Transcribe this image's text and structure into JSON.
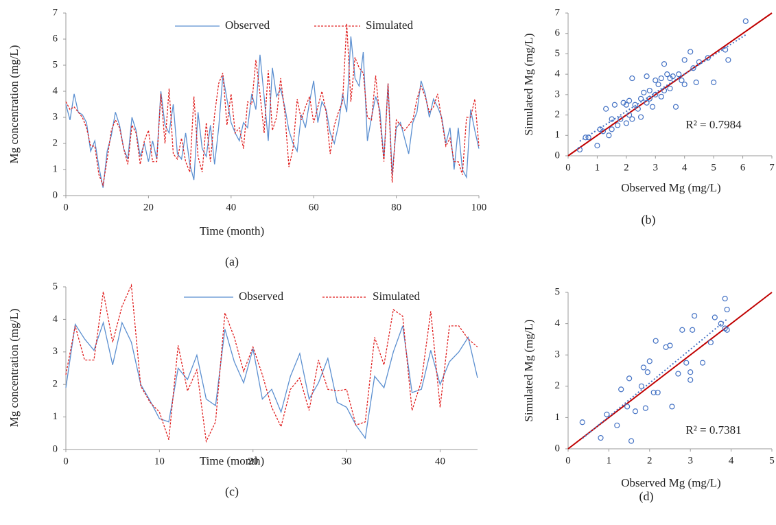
{
  "chart_data": [
    {
      "type": "line",
      "caption": "(a)",
      "x_label": "Time (month)",
      "y_label": "Mg concentration (mg/L)",
      "x": [
        0,
        1,
        2,
        3,
        4,
        5,
        6,
        7,
        8,
        9,
        10,
        11,
        12,
        13,
        14,
        15,
        16,
        17,
        18,
        19,
        20,
        21,
        22,
        23,
        24,
        25,
        26,
        27,
        28,
        29,
        30,
        31,
        32,
        33,
        34,
        35,
        36,
        37,
        38,
        39,
        40,
        41,
        42,
        43,
        44,
        45,
        46,
        47,
        48,
        49,
        50,
        51,
        52,
        53,
        54,
        55,
        56,
        57,
        58,
        59,
        60,
        61,
        62,
        63,
        64,
        65,
        66,
        67,
        68,
        69,
        70,
        71,
        72,
        73,
        74,
        75,
        76,
        77,
        78,
        79,
        80,
        81,
        82,
        83,
        84,
        85,
        86,
        87,
        88,
        89,
        90,
        91,
        92,
        93,
        94,
        95,
        96,
        97,
        98,
        99,
        100
      ],
      "series": [
        {
          "name": "Observed",
          "color": "#5b8fd0",
          "style": "solid",
          "values": [
            3.5,
            2.9,
            3.9,
            3.2,
            3.1,
            2.8,
            1.7,
            2.1,
            1.1,
            0.3,
            1.7,
            2.3,
            3.2,
            2.7,
            1.8,
            1.4,
            3.0,
            2.5,
            1.5,
            2.0,
            1.3,
            2.1,
            1.4,
            4.0,
            2.7,
            2.4,
            3.5,
            1.6,
            1.4,
            2.4,
            1.2,
            0.6,
            3.2,
            1.8,
            1.5,
            2.7,
            1.2,
            2.6,
            4.6,
            3.7,
            2.8,
            2.4,
            2.1,
            2.8,
            2.6,
            3.9,
            3.3,
            5.4,
            3.8,
            2.1,
            4.9,
            3.8,
            4.1,
            3.4,
            2.5,
            2.0,
            1.7,
            3.1,
            2.6,
            3.6,
            4.4,
            2.8,
            3.6,
            3.3,
            2.4,
            2.0,
            2.7,
            3.9,
            3.2,
            6.1,
            4.5,
            4.2,
            5.5,
            2.1,
            3.0,
            3.8,
            3.3,
            1.4,
            4.3,
            0.8,
            2.6,
            2.8,
            2.2,
            1.6,
            2.8,
            3.2,
            4.4,
            3.9,
            3.0,
            3.7,
            3.4,
            3.0,
            2.0,
            2.6,
            1.0,
            2.6,
            1.0,
            0.7,
            3.3,
            2.5,
            1.8
          ]
        },
        {
          "name": "Simulated",
          "color": "#e02020",
          "style": "dashed",
          "values": [
            3.6,
            3.3,
            3.4,
            3.2,
            3.0,
            2.6,
            1.9,
            1.9,
            0.8,
            0.4,
            1.4,
            2.5,
            2.9,
            2.6,
            1.8,
            1.2,
            2.7,
            2.4,
            1.2,
            2.1,
            2.5,
            1.3,
            1.3,
            3.9,
            2.0,
            4.1,
            1.6,
            1.4,
            2.2,
            1.3,
            0.9,
            3.8,
            1.5,
            0.9,
            2.8,
            1.3,
            3.1,
            4.3,
            4.7,
            2.7,
            3.9,
            2.4,
            2.6,
            1.8,
            3.6,
            3.5,
            5.2,
            3.9,
            2.4,
            4.8,
            2.5,
            3.0,
            4.5,
            3.2,
            1.1,
            1.8,
            3.7,
            2.9,
            3.4,
            3.8,
            2.8,
            3.4,
            4.0,
            3.2,
            1.6,
            2.7,
            3.2,
            3.6,
            6.6,
            3.6,
            5.3,
            4.9,
            4.7,
            3.0,
            2.9,
            4.6,
            3.0,
            1.3,
            4.3,
            0.5,
            2.9,
            2.7,
            2.5,
            2.7,
            2.9,
            3.7,
            4.2,
            3.8,
            3.2,
            3.4,
            3.9,
            2.9,
            1.9,
            2.2,
            1.3,
            1.3,
            0.8,
            3.0,
            3.0,
            3.7,
            1.9
          ]
        }
      ],
      "xlim": [
        0,
        100
      ],
      "xticks": [
        0,
        20,
        40,
        60,
        80,
        100
      ],
      "ylim": [
        0,
        7
      ],
      "yticks": [
        0,
        1,
        2,
        3,
        4,
        5,
        6,
        7
      ],
      "legend": "top"
    },
    {
      "type": "scatter",
      "caption": "(b)",
      "x_label": "Observed Mg (mg/L)",
      "y_label": "Simulated Mg (mg/L)",
      "annotation": "R² = 0.7984",
      "color": "#4472c4",
      "line_color": "#c00000",
      "trendline": true,
      "x": [
        0.4,
        0.6,
        0.7,
        1.0,
        1.1,
        1.2,
        1.3,
        1.4,
        1.5,
        1.5,
        1.6,
        1.7,
        1.8,
        1.9,
        2.0,
        2.0,
        2.1,
        2.1,
        2.2,
        2.2,
        2.3,
        2.4,
        2.5,
        2.5,
        2.6,
        2.7,
        2.7,
        2.8,
        2.8,
        2.9,
        3.0,
        3.0,
        3.1,
        3.2,
        3.2,
        3.3,
        3.3,
        3.4,
        3.5,
        3.5,
        3.6,
        3.7,
        3.8,
        3.9,
        4.0,
        4.0,
        4.2,
        4.3,
        4.4,
        4.5,
        4.8,
        5.0,
        5.4,
        5.5,
        6.1
      ],
      "values": [
        0.3,
        0.9,
        0.9,
        0.5,
        1.3,
        1.2,
        2.3,
        1.0,
        1.8,
        1.3,
        2.5,
        1.5,
        1.8,
        2.6,
        2.5,
        1.6,
        2.0,
        2.7,
        1.8,
        3.8,
        2.5,
        2.3,
        1.9,
        2.8,
        3.1,
        2.6,
        3.9,
        2.8,
        3.2,
        2.4,
        3.0,
        3.7,
        3.5,
        2.9,
        3.8,
        4.5,
        3.2,
        4.0,
        3.3,
        3.8,
        3.9,
        2.4,
        4.0,
        3.7,
        4.7,
        3.5,
        5.1,
        4.3,
        3.6,
        4.6,
        4.8,
        3.6,
        5.2,
        4.7,
        6.6
      ],
      "xlim": [
        0,
        7
      ],
      "xticks": [
        0,
        1,
        2,
        3,
        4,
        5,
        6,
        7
      ],
      "ylim": [
        0,
        7
      ],
      "yticks": [
        0,
        1,
        2,
        3,
        4,
        5,
        6,
        7
      ]
    },
    {
      "type": "line",
      "caption": "(c)",
      "x_label": "Time (month)",
      "y_label": "Mg concentration (mg/L)",
      "x": [
        0,
        1,
        2,
        3,
        4,
        5,
        6,
        7,
        8,
        9,
        10,
        11,
        12,
        13,
        14,
        15,
        16,
        17,
        18,
        19,
        20,
        21,
        22,
        23,
        24,
        25,
        26,
        27,
        28,
        29,
        30,
        31,
        32,
        33,
        34,
        35,
        36,
        37,
        38,
        39,
        40,
        41,
        42,
        43,
        44
      ],
      "series": [
        {
          "name": "Observed",
          "color": "#5b8fd0",
          "style": "solid",
          "values": [
            1.9,
            3.85,
            3.4,
            3.05,
            3.9,
            2.6,
            3.9,
            3.3,
            2.0,
            1.5,
            0.95,
            0.85,
            2.5,
            2.15,
            2.9,
            1.55,
            1.35,
            3.7,
            2.7,
            2.05,
            3.1,
            1.55,
            1.85,
            1.15,
            2.25,
            2.95,
            1.55,
            2.05,
            2.8,
            1.45,
            1.3,
            0.75,
            0.35,
            2.25,
            1.9,
            3.0,
            3.8,
            1.75,
            1.85,
            3.05,
            2.0,
            2.7,
            3.0,
            3.45,
            2.2
          ]
        },
        {
          "name": "Simulated",
          "color": "#e02020",
          "style": "dashed",
          "values": [
            2.3,
            3.8,
            2.75,
            2.75,
            4.85,
            3.3,
            4.4,
            5.05,
            1.95,
            1.45,
            1.15,
            0.3,
            3.2,
            1.8,
            2.45,
            0.25,
            0.85,
            4.2,
            3.45,
            2.4,
            3.15,
            2.3,
            1.3,
            0.7,
            1.85,
            2.2,
            1.2,
            2.75,
            1.85,
            1.8,
            1.85,
            0.75,
            0.85,
            3.45,
            2.6,
            4.3,
            4.1,
            1.2,
            2.1,
            4.25,
            1.3,
            3.8,
            3.8,
            3.4,
            3.15
          ]
        }
      ],
      "xlim": [
        0,
        44
      ],
      "xticks": [
        0,
        10,
        20,
        30,
        40
      ],
      "ylim": [
        0,
        5
      ],
      "yticks": [
        0,
        1,
        2,
        3,
        4,
        5
      ],
      "legend": "top"
    },
    {
      "type": "scatter",
      "caption": "(d)",
      "x_label": "Observed Mg (mg/L)",
      "y_label": "Simulated Mg (mg/L)",
      "annotation": "R² = 0.7381",
      "color": "#4472c4",
      "line_color": "#c00000",
      "trendline": true,
      "x": [
        0.35,
        0.8,
        0.95,
        1.2,
        1.3,
        1.45,
        1.5,
        1.55,
        1.65,
        1.8,
        1.85,
        1.9,
        1.95,
        2.0,
        2.1,
        2.15,
        2.2,
        2.4,
        2.5,
        2.55,
        2.7,
        2.8,
        2.9,
        3.0,
        3.0,
        3.05,
        3.1,
        3.3,
        3.5,
        3.6,
        3.75,
        3.85,
        3.9,
        3.9,
        3.85
      ],
      "values": [
        0.85,
        0.35,
        1.1,
        0.75,
        1.9,
        1.35,
        2.25,
        0.25,
        1.2,
        2.0,
        2.6,
        1.3,
        2.45,
        2.8,
        1.8,
        3.45,
        1.8,
        3.25,
        3.3,
        1.35,
        2.4,
        3.8,
        2.75,
        2.45,
        2.2,
        3.8,
        4.25,
        2.75,
        3.4,
        4.2,
        4.0,
        4.8,
        4.45,
        3.8,
        3.85
      ],
      "xlim": [
        0,
        5
      ],
      "xticks": [
        0,
        1,
        2,
        3,
        4,
        5
      ],
      "ylim": [
        0,
        5
      ],
      "yticks": [
        0,
        1,
        2,
        3,
        4,
        5
      ]
    }
  ]
}
